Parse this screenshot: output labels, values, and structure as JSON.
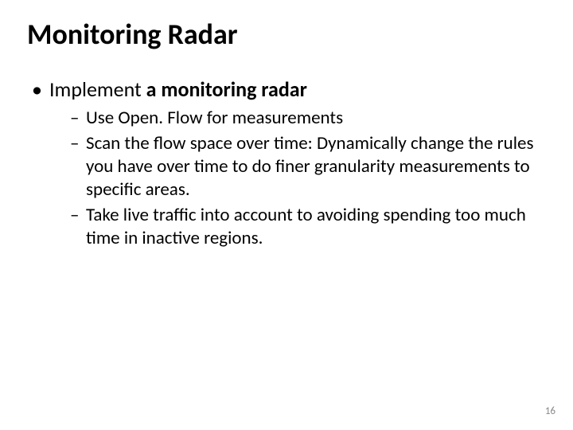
{
  "slide": {
    "title": "Monitoring Radar",
    "bullets": [
      {
        "prefix": "Implement ",
        "bold": "a monitoring radar",
        "sub": [
          "Use Open. Flow for measurements",
          "Scan the flow space over time: Dynamically change the rules you have over time to do finer granularity measurements to specific areas.",
          "Take live traffic into account to avoiding spending too much time in inactive regions."
        ]
      }
    ],
    "page_number": "16"
  },
  "style": {
    "background_color": "#ffffff",
    "text_color": "#000000",
    "pagenum_color": "#8a8a8a",
    "title_fontsize_pt": 36,
    "level1_fontsize_pt": 26,
    "level2_fontsize_pt": 23,
    "font_family": "Calibri"
  }
}
